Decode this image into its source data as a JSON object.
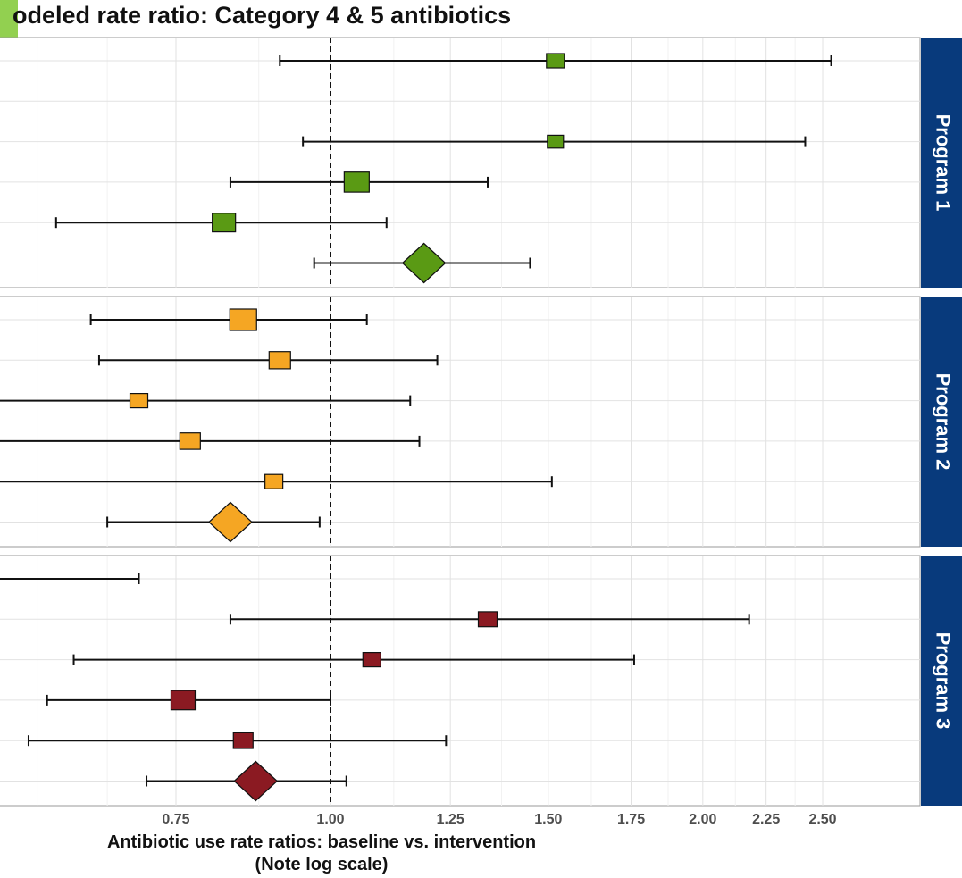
{
  "title": "odeled rate ratio: Category 4 & 5 antibiotics",
  "colors": {
    "program1": "#5a9a14",
    "program2": "#f5a623",
    "program3": "#8b1a22",
    "strip": "#083a7c",
    "accent_bar": "#92d050"
  },
  "chart_data": {
    "type": "forest",
    "title": "odeled rate ratio: Category 4 & 5 antibiotics",
    "xlabel_line1": "Antibiotic use rate ratios: baseline vs. intervention",
    "xlabel_line2": "(Note log scale)",
    "x_scale": "log",
    "x_ticks": [
      0.75,
      1.0,
      1.25,
      1.5,
      1.75,
      2.0,
      2.25,
      2.5
    ],
    "x_tick_labels": [
      "0.75",
      "1.00",
      "1.25",
      "1.50",
      "1.75",
      "2.00",
      "2.25",
      "2.50"
    ],
    "reference_line": 1.0,
    "grid": true,
    "panels": [
      {
        "name": "Program 1",
        "color": "program1",
        "rows": [
          {
            "shape": "square",
            "estimate": 1.52,
            "lower": 0.91,
            "upper": 2.54,
            "weight": 0.5
          },
          null,
          {
            "shape": "square",
            "estimate": 1.52,
            "lower": 0.95,
            "upper": 2.42,
            "weight": 0.4
          },
          {
            "shape": "square",
            "estimate": 1.05,
            "lower": 0.83,
            "upper": 1.34,
            "weight": 0.9
          },
          {
            "shape": "square",
            "estimate": 0.82,
            "lower": 0.6,
            "upper": 1.11,
            "weight": 0.8
          },
          {
            "shape": "diamond",
            "estimate": 1.19,
            "lower": 0.97,
            "upper": 1.45
          }
        ]
      },
      {
        "name": "Program 2",
        "color": "program2",
        "rows": [
          {
            "shape": "square",
            "estimate": 0.85,
            "lower": 0.64,
            "upper": 1.07,
            "weight": 1.0
          },
          {
            "shape": "square",
            "estimate": 0.91,
            "lower": 0.65,
            "upper": 1.22,
            "weight": 0.7
          },
          {
            "shape": "square",
            "estimate": 0.7,
            "lower": 0.5,
            "upper": 1.16,
            "weight": 0.5
          },
          {
            "shape": "square",
            "estimate": 0.77,
            "lower": 0.5,
            "upper": 1.18,
            "weight": 0.65
          },
          {
            "shape": "square",
            "estimate": 0.9,
            "lower": 0.5,
            "upper": 1.51,
            "weight": 0.5
          },
          {
            "shape": "diamond",
            "estimate": 0.83,
            "lower": 0.66,
            "upper": 0.98
          }
        ]
      },
      {
        "name": "Program 3",
        "color": "program3",
        "rows": [
          {
            "shape": "square",
            "estimate": null,
            "lower": 0.5,
            "upper": 0.7,
            "weight": 0
          },
          {
            "shape": "square",
            "estimate": 1.34,
            "lower": 0.83,
            "upper": 2.18,
            "weight": 0.55
          },
          {
            "shape": "square",
            "estimate": 1.08,
            "lower": 0.62,
            "upper": 1.76,
            "weight": 0.5
          },
          {
            "shape": "square",
            "estimate": 0.76,
            "lower": 0.59,
            "upper": 1.0,
            "weight": 0.85
          },
          {
            "shape": "square",
            "estimate": 0.85,
            "lower": 0.57,
            "upper": 1.24,
            "weight": 0.6
          },
          {
            "shape": "diamond",
            "estimate": 0.87,
            "lower": 0.71,
            "upper": 1.03
          }
        ]
      }
    ]
  }
}
